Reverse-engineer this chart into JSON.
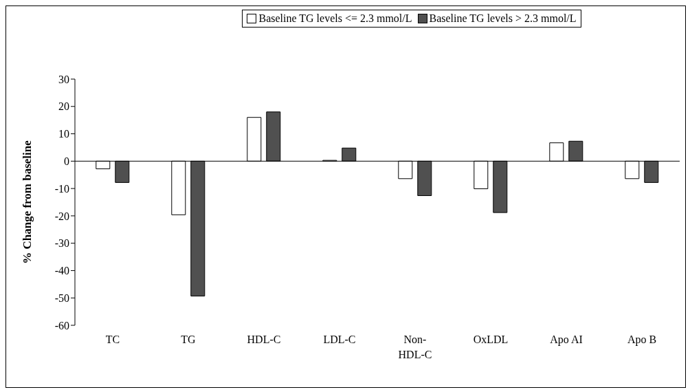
{
  "chart_data": {
    "type": "bar",
    "ylabel": "% Change from baseline",
    "categories": [
      "TC",
      "TG",
      "HDL-C",
      "LDL-C",
      "Non-HDL-C",
      "OxLDL",
      "Apo AI",
      "Apo B"
    ],
    "series": [
      {
        "name": "Baseline TG levels <= 2.3 mmol/L",
        "color": "#ffffff",
        "values": [
          -2.8,
          -19.6,
          16,
          0.3,
          -6.4,
          -10.1,
          6.7,
          -6.4
        ]
      },
      {
        "name": "Baseline TG levels > 2.3 mmol/L",
        "color": "#505050",
        "values": [
          -7.8,
          -49.3,
          18,
          4.8,
          -12.6,
          -18.8,
          7.3,
          -7.8
        ]
      }
    ],
    "ylim": [
      -60,
      30
    ],
    "yticks": [
      -60,
      -50,
      -40,
      -30,
      -20,
      -10,
      0,
      10,
      20,
      30
    ],
    "legend": "top"
  }
}
